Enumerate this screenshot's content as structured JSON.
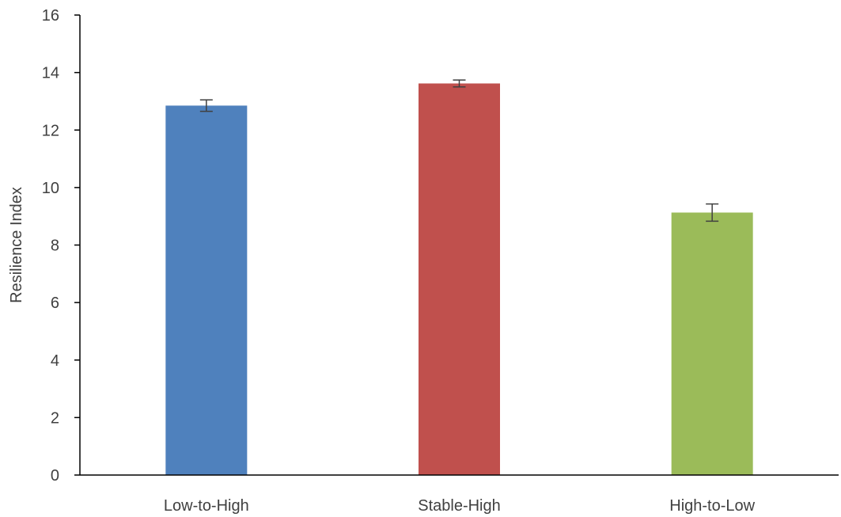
{
  "chart_data": {
    "type": "bar",
    "title": "",
    "xlabel": "",
    "ylabel": "Resilience Index",
    "categories": [
      "Low-to-High",
      "Stable-High",
      "High-to-Low"
    ],
    "values": [
      12.85,
      13.62,
      9.13
    ],
    "error": [
      0.2,
      0.12,
      0.3
    ],
    "colors": [
      "#4f81bd",
      "#c0504d",
      "#9bbb59"
    ],
    "ylim": [
      0,
      16
    ],
    "yticks": [
      "0",
      "2",
      "4",
      "6",
      "8",
      "10",
      "12",
      "14",
      "16"
    ],
    "grid": false,
    "legend": "none"
  }
}
